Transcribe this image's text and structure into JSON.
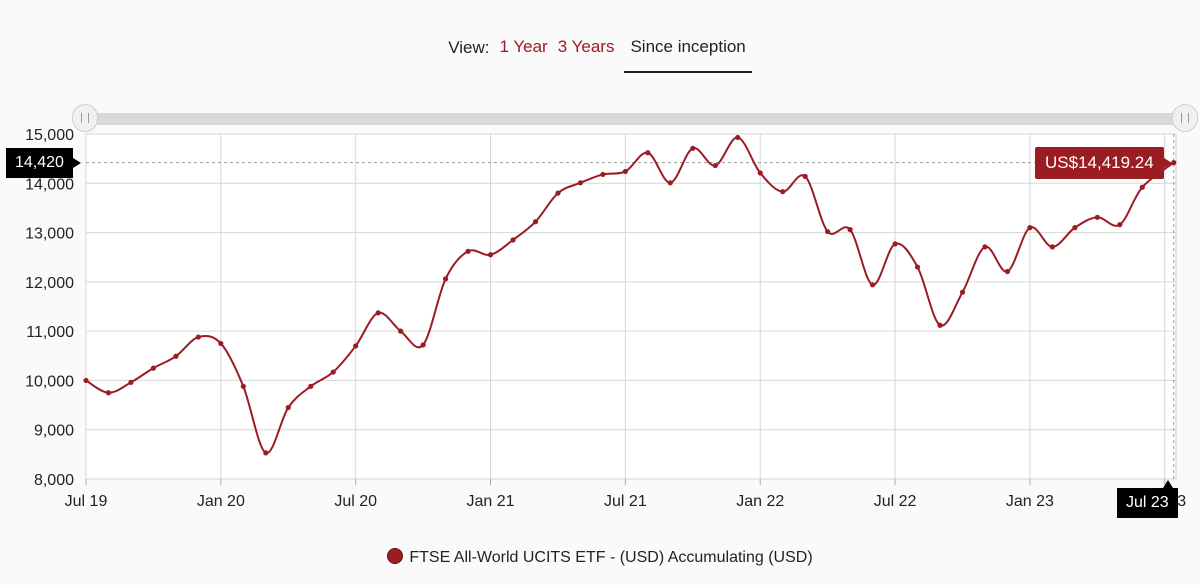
{
  "view": {
    "label": "View:",
    "options": [
      "1 Year",
      "3 Years",
      "Since inception"
    ],
    "active": "Since inception"
  },
  "crosshair": {
    "y_label": "14,420",
    "x_label": "Jul 23",
    "tooltip": "US$14,419.24"
  },
  "chart_data": {
    "type": "line",
    "ylim": [
      8000,
      15000
    ],
    "y_ticks": [
      8000,
      9000,
      10000,
      11000,
      12000,
      13000,
      14000,
      15000
    ],
    "y_tick_labels": [
      "8,000",
      "9,000",
      "10,000",
      "11,000",
      "12,000",
      "13,000",
      "14,000",
      "15,000"
    ],
    "x_tick_labels": [
      "Jul 19",
      "Jan 20",
      "Jul 20",
      "Jan 21",
      "Jul 21",
      "Jan 22",
      "Jul 22",
      "Jan 23",
      "Jul 23"
    ],
    "x_tick_months": [
      0,
      6,
      12,
      18,
      24,
      30,
      36,
      42,
      48
    ],
    "x_range_months": [
      0,
      48.5
    ],
    "grid": true,
    "legend_position": "bottom-center",
    "line_color": "#9b1c23",
    "series": [
      {
        "name": "FTSE All-World UCITS ETF - (USD) Accumulating (USD)",
        "months": [
          0,
          1,
          2,
          3,
          4,
          5,
          6,
          7,
          8,
          9,
          10,
          11,
          12,
          13,
          14,
          15,
          16,
          17,
          18,
          19,
          20,
          21,
          22,
          23,
          24,
          25,
          26,
          27,
          28,
          29,
          30,
          31,
          32,
          33,
          34,
          35,
          36,
          37,
          38,
          39,
          40,
          41,
          42,
          43,
          44,
          45,
          46,
          47,
          48.4
        ],
        "values": [
          10000,
          9750,
          9960,
          10250,
          10490,
          10880,
          10750,
          9880,
          8530,
          9450,
          9880,
          10170,
          10700,
          11370,
          11000,
          10720,
          12060,
          12620,
          12550,
          12850,
          13220,
          13800,
          14010,
          14180,
          14240,
          14620,
          14010,
          14710,
          14360,
          14930,
          14210,
          13830,
          14140,
          13020,
          13060,
          11940,
          12770,
          12300,
          11120,
          11790,
          12710,
          12210,
          13100,
          12710,
          13100,
          13310,
          13160,
          13920,
          14419.24
        ]
      }
    ]
  }
}
